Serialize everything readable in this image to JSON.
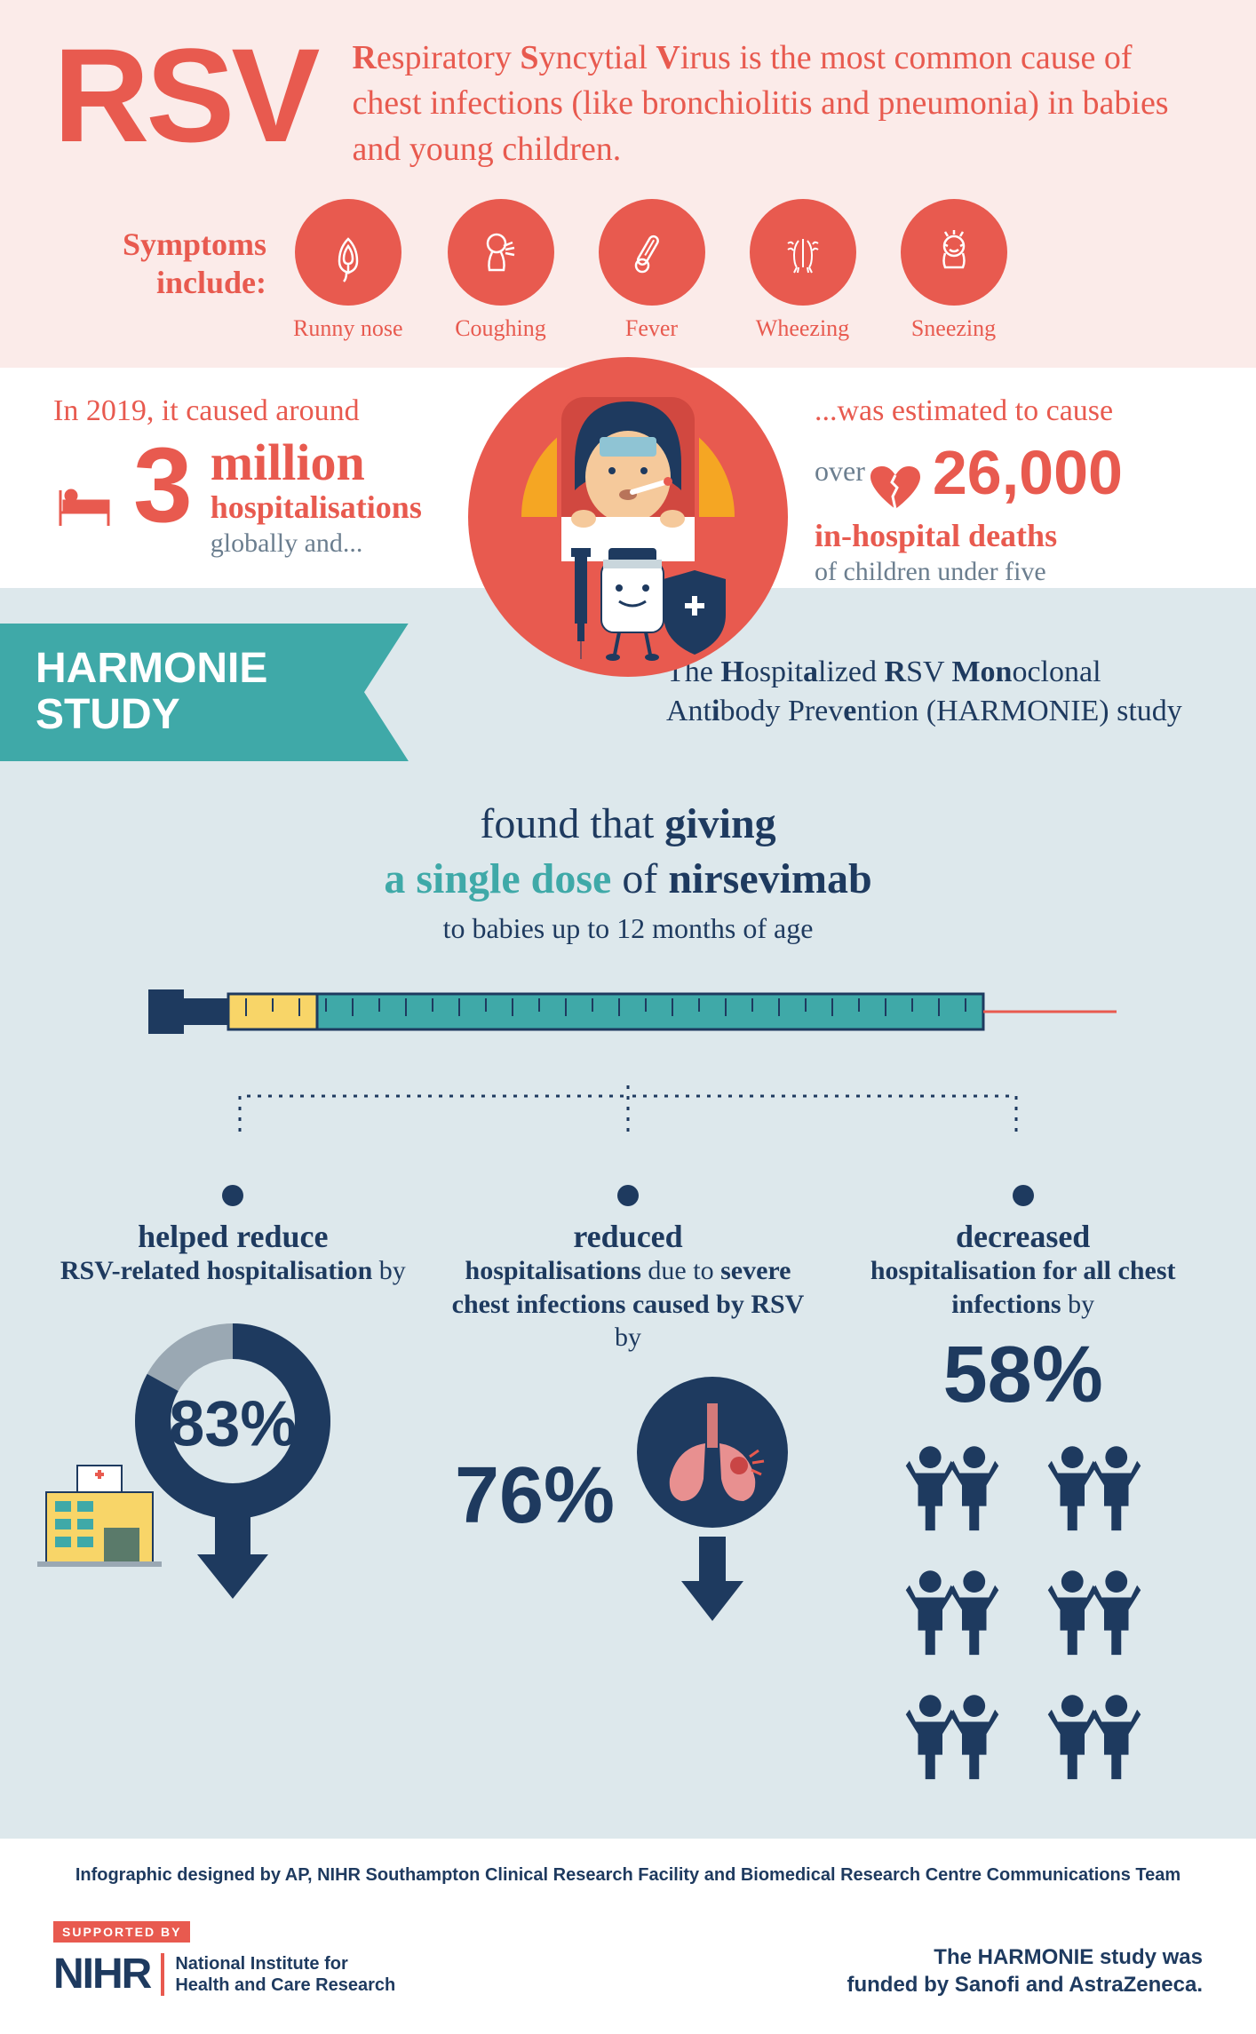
{
  "colors": {
    "coral": "#e85a4f",
    "navy": "#1e3a5f",
    "teal": "#3fa9a8",
    "lightBlue": "#dde8ec",
    "pink": "#fbebe9",
    "grey": "#6b7e8f",
    "orange": "#f5a623",
    "yellow": "#f8d568",
    "white": "#ffffff"
  },
  "header": {
    "acronym": "RSV",
    "description_parts": [
      "R",
      "espiratory ",
      "S",
      "yncytial ",
      "V",
      "irus is the most common cause of chest infections (like bronchiolitis and pneumonia) in babies and young children."
    ],
    "symptoms_label": "Symptoms include:",
    "symptoms": [
      {
        "name": "runny-nose",
        "label": "Runny nose"
      },
      {
        "name": "coughing",
        "label": "Coughing"
      },
      {
        "name": "fever",
        "label": "Fever"
      },
      {
        "name": "wheezing",
        "label": "Wheezing"
      },
      {
        "name": "sneezing",
        "label": "Sneezing"
      }
    ]
  },
  "stats": {
    "left_intro": "In 2019, it caused around",
    "left_number": "3",
    "left_unit": "million",
    "left_label": "hospitalisations",
    "left_sub": "globally and...",
    "right_intro": "...was estimated to cause",
    "right_over": "over",
    "right_number": "26,000",
    "right_label": "in-hospital deaths",
    "right_sub": "of children under five"
  },
  "harmonie": {
    "banner": "HARMONIE STUDY",
    "desc_parts": [
      "The ",
      "H",
      "ospit",
      "a",
      "lized ",
      "R",
      "SV ",
      "Mon",
      "oclonal Ant",
      "i",
      "body Prev",
      "e",
      "ntion (HARMONIE) study"
    ],
    "found_line1_a": "found that ",
    "found_line1_b": "giving",
    "found_line2_a": "a single dose",
    "found_line2_b": " of ",
    "found_line2_c": "nirsevimab",
    "found_sub": "to babies up to 12 months of age"
  },
  "results": [
    {
      "head": "helped reduce",
      "sub_parts": [
        [
          "b",
          "RSV-related hospitalisation"
        ],
        [
          "n",
          " by"
        ]
      ],
      "pct": "83%",
      "donut_pct": 83,
      "type": "donut"
    },
    {
      "head": "reduced",
      "sub_parts": [
        [
          "b",
          "hospitalisations"
        ],
        [
          "n",
          " due to "
        ],
        [
          "b",
          "severe chest infections caused by RSV"
        ],
        [
          "n",
          " by"
        ]
      ],
      "pct": "76%",
      "type": "lungs"
    },
    {
      "head": "decreased",
      "sub_parts": [
        [
          "b",
          "hospitalisation for all chest infections"
        ],
        [
          "n",
          " by"
        ]
      ],
      "pct": "58%",
      "type": "people"
    }
  ],
  "footer": {
    "credit": "Infographic designed by AP, NIHR Southampton Clinical Research Facility and Biomedical Research Centre Communications Team",
    "supported": "SUPPORTED BY",
    "nihr": "NIHR",
    "nihr_text": "National Institute for Health and Care Research",
    "funded": "The HARMONIE study was funded by Sanofi and AstraZeneca."
  }
}
